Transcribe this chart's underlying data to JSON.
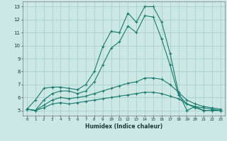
{
  "xlabel": "Humidex (Indice chaleur)",
  "x": [
    0,
    1,
    2,
    3,
    4,
    5,
    6,
    7,
    8,
    9,
    10,
    11,
    12,
    13,
    14,
    15,
    16,
    17,
    18,
    19,
    20,
    21,
    22,
    23
  ],
  "line1": [
    5.1,
    5.8,
    6.7,
    6.8,
    6.8,
    6.7,
    6.6,
    7.0,
    8.0,
    9.9,
    11.1,
    11.0,
    12.5,
    11.8,
    13.0,
    13.0,
    11.8,
    9.4,
    6.4,
    5.0,
    5.3,
    5.0,
    5.0,
    5.0
  ],
  "line2": [
    5.1,
    5.0,
    5.8,
    6.3,
    6.5,
    6.5,
    6.3,
    6.5,
    7.2,
    8.5,
    9.8,
    10.3,
    11.5,
    11.0,
    12.3,
    12.2,
    10.5,
    8.5,
    6.2,
    5.5,
    5.2,
    5.0,
    5.0,
    5.0
  ],
  "line3": [
    5.1,
    5.0,
    5.4,
    5.8,
    6.0,
    5.9,
    6.0,
    6.1,
    6.3,
    6.5,
    6.7,
    6.9,
    7.1,
    7.2,
    7.5,
    7.5,
    7.4,
    7.0,
    6.4,
    5.8,
    5.5,
    5.3,
    5.2,
    5.1
  ],
  "line4": [
    5.1,
    5.0,
    5.2,
    5.5,
    5.6,
    5.5,
    5.6,
    5.7,
    5.8,
    5.9,
    6.0,
    6.1,
    6.2,
    6.3,
    6.4,
    6.4,
    6.3,
    6.1,
    5.9,
    5.5,
    5.3,
    5.2,
    5.1,
    5.0
  ],
  "line_color": "#1a7a6e",
  "bg_color": "#cce8e4",
  "grid_color": "#aacfcc",
  "ylim": [
    4.6,
    13.4
  ],
  "xlim": [
    -0.5,
    23.5
  ],
  "yticks": [
    5,
    6,
    7,
    8,
    9,
    10,
    11,
    12,
    13
  ],
  "xticks": [
    0,
    1,
    2,
    3,
    4,
    5,
    6,
    7,
    8,
    9,
    10,
    11,
    12,
    13,
    14,
    15,
    16,
    17,
    18,
    19,
    20,
    21,
    22,
    23
  ]
}
